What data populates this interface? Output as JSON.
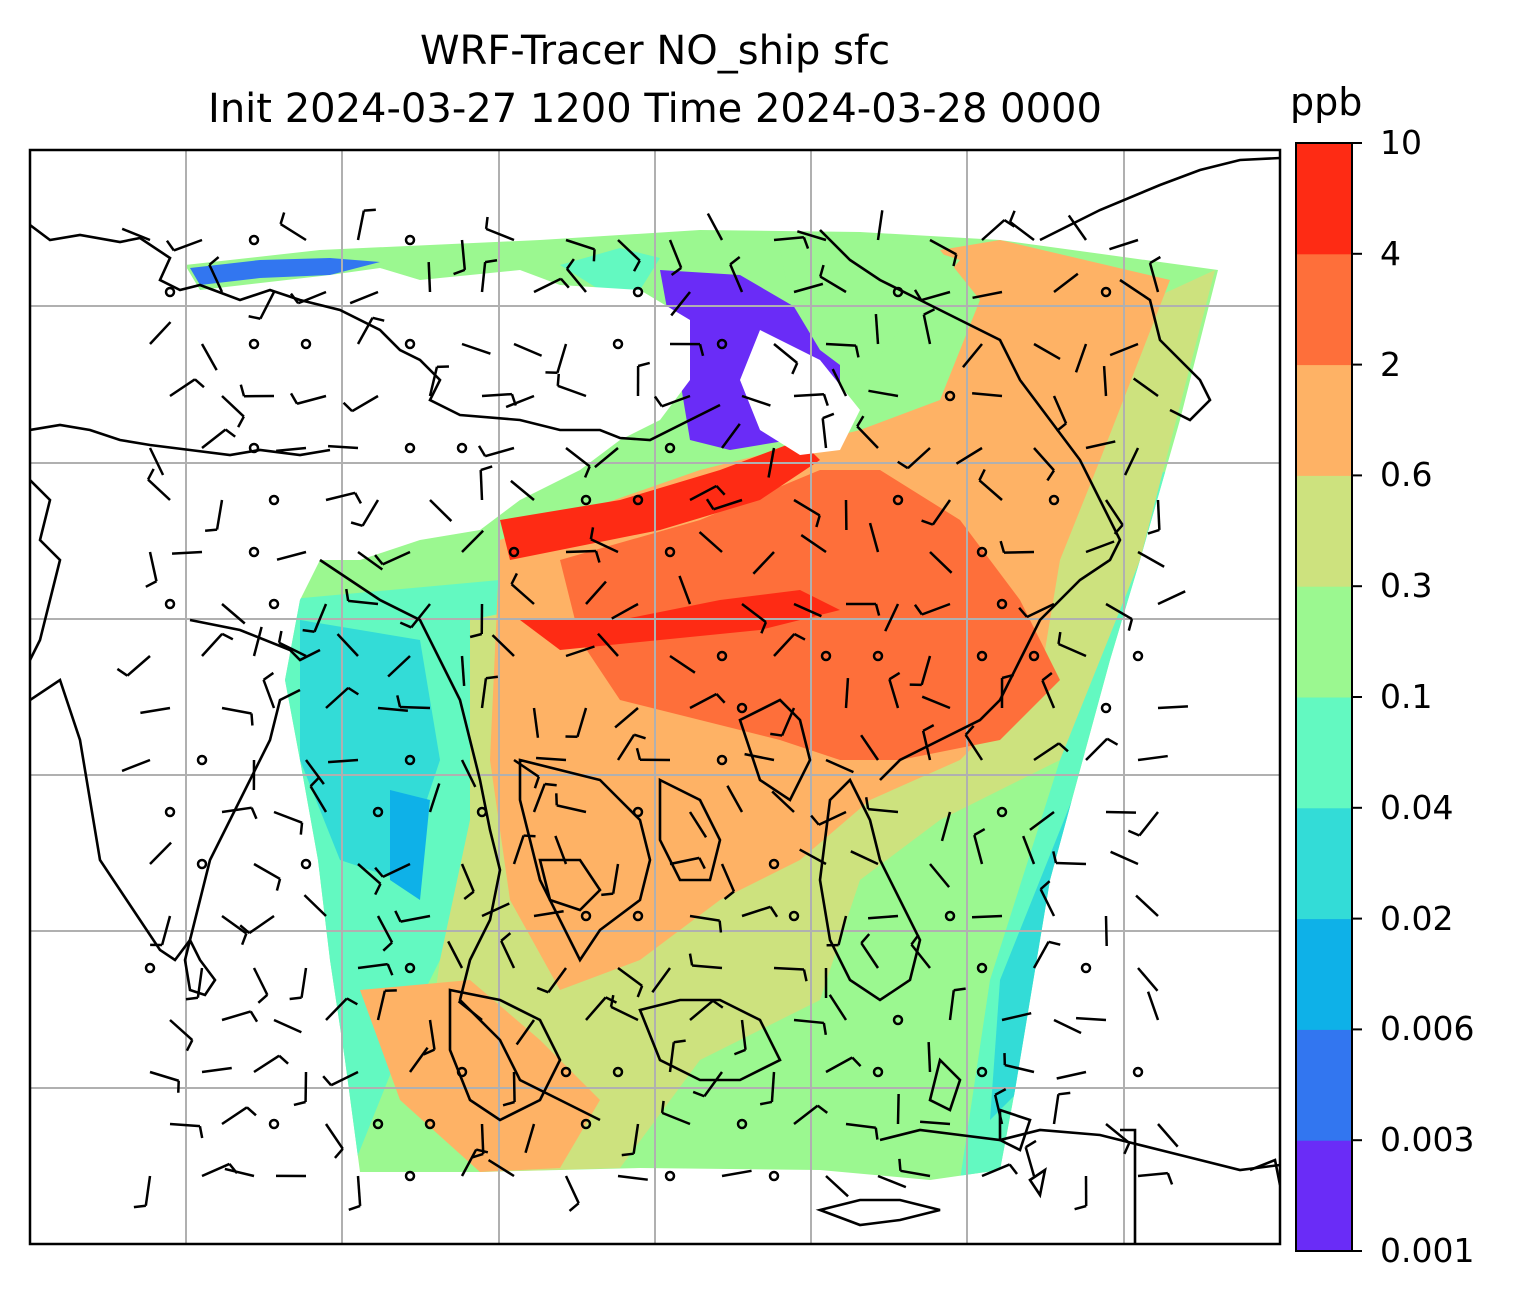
{
  "title": {
    "line1": "WRF-Tracer NO_ship sfc",
    "line2": "Init 2024-03-27 1200 Time 2024-03-28 0000"
  },
  "colorbar": {
    "units": "ppb",
    "levels": [
      "0.001",
      "0.003",
      "0.006",
      "0.02",
      "0.04",
      "0.1",
      "0.3",
      "0.6",
      "2",
      "4",
      "10"
    ],
    "colors": [
      "#6a2cf7",
      "#3276f0",
      "#0eb1e8",
      "#33dcd7",
      "#63f9c1",
      "#9bf890",
      "#cde27e",
      "#feb265",
      "#fe6f3a",
      "#fe2b14"
    ]
  },
  "map": {
    "background": "#ffffff",
    "gridline_color": "#b0b0b0",
    "coastline_color": "#000000",
    "wind_barb_color": "#000000"
  }
}
